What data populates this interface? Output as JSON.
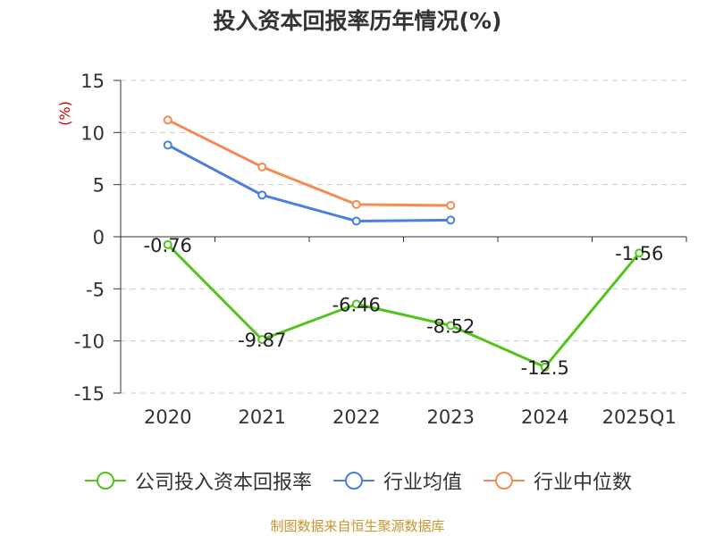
{
  "chart_data": {
    "type": "line",
    "title": "投入资本回报率历年情况(%)",
    "ylabel": "(%)",
    "categories": [
      "2020",
      "2021",
      "2022",
      "2023",
      "2024",
      "2025Q1"
    ],
    "yticks": [
      15,
      10,
      5,
      0,
      -5,
      -10,
      -15
    ],
    "ylim": [
      -15,
      15
    ],
    "grid": true,
    "legend_position": "bottom",
    "series": [
      {
        "name": "公司投入资本回报率",
        "color": "#52c41a",
        "values": [
          -0.76,
          -9.87,
          -6.46,
          -8.52,
          -12.5,
          -1.56
        ],
        "labels": [
          "-0.76",
          "-9.87",
          "-6.46",
          "-8.52",
          "-12.5",
          "-1.56"
        ]
      },
      {
        "name": "行业均值",
        "color": "#4a7fdc",
        "values": [
          8.8,
          4.0,
          1.5,
          1.6,
          null,
          null
        ]
      },
      {
        "name": "行业中位数",
        "color": "#f58b50",
        "values": [
          11.2,
          6.7,
          3.1,
          3.0,
          null,
          null
        ]
      }
    ]
  },
  "source": "制图数据来自恒生聚源数据库"
}
